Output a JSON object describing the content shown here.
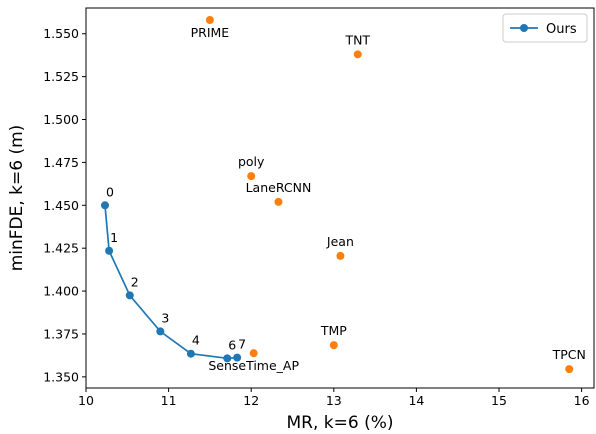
{
  "chart_data": {
    "type": "scatter",
    "xlabel": "MR, k=6 (%)",
    "ylabel": "minFDE, k=6 (m)",
    "xlim": [
      10.0,
      16.15
    ],
    "ylim": [
      1.3435,
      1.565
    ],
    "xticks": [
      10,
      11,
      12,
      13,
      14,
      15,
      16
    ],
    "xtick_labels": [
      "10",
      "11",
      "12",
      "13",
      "14",
      "15",
      "16"
    ],
    "yticks": [
      1.35,
      1.375,
      1.4,
      1.425,
      1.45,
      1.475,
      1.5,
      1.525,
      1.55
    ],
    "ytick_labels": [
      "1.350",
      "1.375",
      "1.400",
      "1.425",
      "1.450",
      "1.475",
      "1.500",
      "1.525",
      "1.550"
    ],
    "grid": false,
    "legend_position": "top-right",
    "series": [
      {
        "name": "Ours",
        "color": "#1f77b4",
        "style": "line-with-markers",
        "points": [
          {
            "label": "0",
            "x": 10.23,
            "y": 1.45
          },
          {
            "label": "1",
            "x": 10.28,
            "y": 1.4235
          },
          {
            "label": "2",
            "x": 10.53,
            "y": 1.3975
          },
          {
            "label": "3",
            "x": 10.9,
            "y": 1.3765
          },
          {
            "label": "4",
            "x": 11.27,
            "y": 1.3635
          },
          {
            "label": "6",
            "x": 11.71,
            "y": 1.3608
          },
          {
            "label": "7",
            "x": 11.83,
            "y": 1.3612
          }
        ]
      },
      {
        "color": "#ff7f0e",
        "style": "markers",
        "points": [
          {
            "label": "PRIME",
            "x": 11.5,
            "y": 1.558
          },
          {
            "label": "TNT",
            "x": 13.29,
            "y": 1.538
          },
          {
            "label": "poly",
            "x": 12.0,
            "y": 1.467
          },
          {
            "label": "LaneRCNN",
            "x": 12.33,
            "y": 1.452
          },
          {
            "label": "Jean",
            "x": 13.08,
            "y": 1.4205
          },
          {
            "label": "TMP",
            "x": 13.0,
            "y": 1.3685
          },
          {
            "label": "SenseTime_AP",
            "x": 12.03,
            "y": 1.3638
          },
          {
            "label": "TPCN",
            "x": 15.85,
            "y": 1.3545
          }
        ]
      }
    ]
  }
}
